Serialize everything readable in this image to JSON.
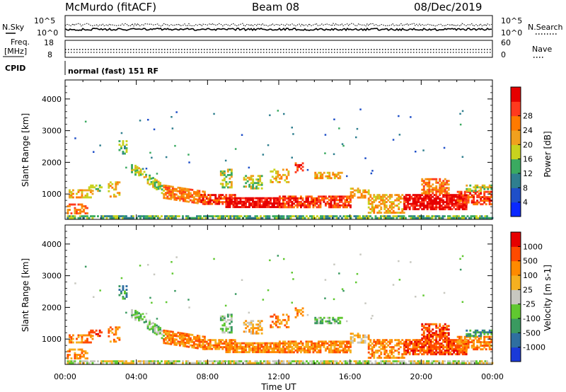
{
  "header": {
    "station": "McMurdo (fitACF)",
    "beam": "Beam 08",
    "date": "08/Dec/2019"
  },
  "noise_panel": {
    "left_label": "N.Sky",
    "right_label": "N.Search",
    "left_ticks": [
      "10^5",
      "10^0"
    ],
    "right_ticks": [
      "10^5",
      "10^0"
    ]
  },
  "freq_panel": {
    "left_label_1": "Freq.",
    "left_label_2": "[MHz]",
    "right_label": "Nave",
    "left_ticks": [
      "18",
      "8"
    ],
    "right_ticks": [
      "60",
      "0"
    ]
  },
  "cpid": {
    "label": "CPID",
    "value": "normal (fast) 151 RF"
  },
  "colors": {
    "power": [
      "#0a28ff",
      "#1f4fc8",
      "#2f7f8f",
      "#3aaa60",
      "#c8d21e",
      "#f0a01e",
      "#ff7a00",
      "#ff3a1e",
      "#e60000"
    ],
    "velocity": [
      "#e60000",
      "#ff4a00",
      "#ff8a00",
      "#f5b020",
      "#c8c8c0",
      "#60c830",
      "#3a9a60",
      "#2f6fa0",
      "#1a3ad8"
    ]
  },
  "chart_data": [
    {
      "type": "heatmap",
      "name": "power",
      "ylabel": "Slant Range [km]",
      "xlabel": "",
      "ylim": [
        200,
        4600
      ],
      "yticks": [
        1000,
        2000,
        3000,
        4000
      ],
      "xlim": [
        0,
        24
      ],
      "xticks": [
        "00:00",
        "04:00",
        "08:00",
        "12:00",
        "16:00",
        "20:00",
        "00:00"
      ],
      "colorbar": {
        "label": "Power [dB]",
        "range": [
          0,
          32
        ],
        "ticks": [
          "4",
          "8",
          "12",
          "16",
          "20",
          "24",
          "28"
        ]
      }
    },
    {
      "type": "heatmap",
      "name": "velocity",
      "ylabel": "Slant Range [km]",
      "xlabel": "Time UT",
      "ylim": [
        200,
        4600
      ],
      "yticks": [
        1000,
        2000,
        3000,
        4000
      ],
      "xlim": [
        0,
        24
      ],
      "xticks": [
        "00:00",
        "04:00",
        "08:00",
        "12:00",
        "16:00",
        "20:00",
        "00:00"
      ],
      "colorbar": {
        "label": "Velocity [m s-1]",
        "ticks": [
          "1000",
          "500",
          "100",
          "25",
          "-25",
          "-100",
          "-500",
          "-1000"
        ]
      }
    }
  ]
}
